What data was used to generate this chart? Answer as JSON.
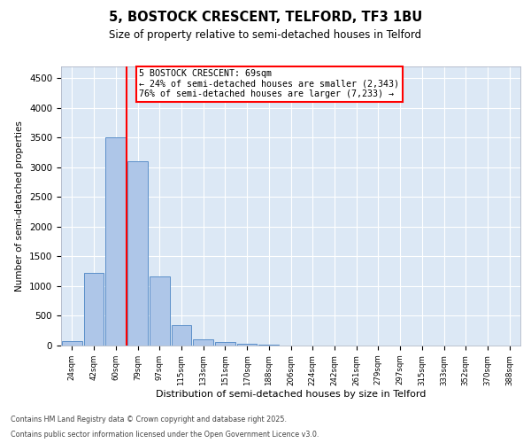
{
  "title1": "5, BOSTOCK CRESCENT, TELFORD, TF3 1BU",
  "title2": "Size of property relative to semi-detached houses in Telford",
  "xlabel": "Distribution of semi-detached houses by size in Telford",
  "ylabel": "Number of semi-detached properties",
  "bar_values": [
    75,
    1220,
    3510,
    3110,
    1160,
    350,
    105,
    60,
    30,
    10,
    0,
    0,
    0,
    0,
    0,
    0,
    0,
    0,
    0,
    0,
    0
  ],
  "bar_color": "#aec6e8",
  "bar_edge_color": "#5b8fc9",
  "vline_color": "red",
  "annotation_title": "5 BOSTOCK CRESCENT: 69sqm",
  "annotation_line1": "← 24% of semi-detached houses are smaller (2,343)",
  "annotation_line2": "76% of semi-detached houses are larger (7,233) →",
  "ylim": [
    0,
    4700
  ],
  "yticks": [
    0,
    500,
    1000,
    1500,
    2000,
    2500,
    3000,
    3500,
    4000,
    4500
  ],
  "background_color": "#dce8f5",
  "footer1": "Contains HM Land Registry data © Crown copyright and database right 2025.",
  "footer2": "Contains public sector information licensed under the Open Government Licence v3.0.",
  "all_labels": [
    "24sqm",
    "42sqm",
    "60sqm",
    "79sqm",
    "97sqm",
    "115sqm",
    "133sqm",
    "151sqm",
    "170sqm",
    "188sqm",
    "206sqm",
    "224sqm",
    "242sqm",
    "261sqm",
    "279sqm",
    "297sqm",
    "315sqm",
    "333sqm",
    "352sqm",
    "370sqm",
    "388sqm"
  ]
}
